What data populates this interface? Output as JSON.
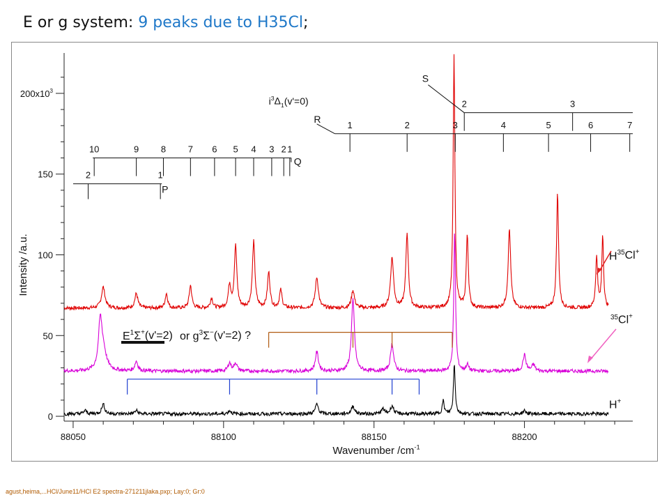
{
  "title": {
    "prefix": "E or g system: ",
    "highlight": "9 peaks due to H35Cl",
    "suffix": ";"
  },
  "footer": "agust,heima,...HCl/June11/HCl  E2 spectra-271211jlaka.pxp; Lay:0; Gr:0",
  "colors": {
    "h35cl_ion": "#e00000",
    "cl35_ion": "#d800d8",
    "h_ion": "#000000",
    "comb_brown": "#b05a10",
    "comb_blue": "#1f3fd0",
    "arrow_red": "#e02020",
    "arrow_pink": "#f060c0",
    "title_highlight": "#1f78c8"
  },
  "chart_data": {
    "type": "line",
    "title": "",
    "xlabel": "Wavenumber /cm",
    "xlabel_sup": "-1",
    "ylabel": "Intensity  /a.u.",
    "xlim": [
      88047,
      88236
    ],
    "ylim": [
      -3,
      225
    ],
    "x_ticks": [
      88050,
      88100,
      88150,
      88200
    ],
    "y_ticks": [
      {
        "value": 0,
        "label": "0"
      },
      {
        "value": 50,
        "label": "50"
      },
      {
        "value": 100,
        "label": "100"
      },
      {
        "value": 150,
        "label": "150"
      },
      {
        "value": 200,
        "label": "200x10",
        "sup": "3"
      }
    ],
    "series": [
      {
        "name": "H35Cl+",
        "label_main": "H",
        "label_sup": "35",
        "label_rest": "Cl",
        "label_sup2": "+",
        "color": "#e00000",
        "baseline": 67,
        "x_range": [
          88047,
          88228
        ],
        "peaks": [
          [
            88060,
            13,
            0.7
          ],
          [
            88071,
            9,
            0.6
          ],
          [
            88081,
            9,
            0.5
          ],
          [
            88089,
            14,
            0.5
          ],
          [
            88096,
            6,
            0.5
          ],
          [
            88102,
            14,
            0.5
          ],
          [
            88104,
            38,
            0.5
          ],
          [
            88110,
            41,
            0.5
          ],
          [
            88115,
            22,
            0.5
          ],
          [
            88119,
            11,
            0.5
          ],
          [
            88131,
            19,
            0.6
          ],
          [
            88143,
            11,
            0.6
          ],
          [
            88156,
            31,
            0.6
          ],
          [
            88161,
            46,
            0.5
          ],
          [
            88176.6,
            156,
            0.35
          ],
          [
            88181,
            45,
            0.4
          ],
          [
            88195,
            49,
            0.5
          ],
          [
            88211,
            71,
            0.4
          ],
          [
            88224,
            31,
            0.4
          ],
          [
            88226,
            45,
            0.35
          ]
        ]
      },
      {
        "name": "35Cl+",
        "label_main": "",
        "label_sup": "35",
        "label_rest": "Cl",
        "label_sup2": "+",
        "color": "#d800d8",
        "baseline": 28,
        "x_range": [
          88047,
          88228
        ],
        "peaks": [
          [
            88059,
            28,
            0.7
          ],
          [
            88060,
            12,
            1.2
          ],
          [
            88071,
            6,
            0.6
          ],
          [
            88102,
            5,
            0.6
          ],
          [
            88104,
            5,
            0.6
          ],
          [
            88131,
            12,
            0.6
          ],
          [
            88143,
            44,
            0.6
          ],
          [
            88156,
            17,
            0.6
          ],
          [
            88176.8,
            86,
            0.35
          ],
          [
            88181,
            4,
            0.5
          ],
          [
            88200,
            10,
            0.6
          ],
          [
            88203,
            4,
            0.6
          ]
        ]
      },
      {
        "name": "H+",
        "label_main": "H",
        "label_sup": "",
        "label_rest": "",
        "label_sup2": "+",
        "color": "#000000",
        "baseline": 1.5,
        "x_range": [
          88047,
          88228
        ],
        "peaks": [
          [
            88054,
            2,
            0.6
          ],
          [
            88060,
            6,
            0.6
          ],
          [
            88071,
            2,
            0.6
          ],
          [
            88102,
            2,
            0.6
          ],
          [
            88131,
            6,
            0.6
          ],
          [
            88143,
            5,
            0.6
          ],
          [
            88153,
            3,
            0.6
          ],
          [
            88156,
            5,
            0.6
          ],
          [
            88173,
            8,
            0.4
          ],
          [
            88176.7,
            31,
            0.35
          ],
          [
            88200,
            2,
            0.6
          ]
        ]
      }
    ],
    "branch_annotations": [
      {
        "branch": "P",
        "label_anchor": "below-right",
        "lines": [
          {
            "label": "1",
            "x": 88079
          },
          {
            "label": "2",
            "x": 88055
          }
        ],
        "bar_y": 144,
        "bar_x_end": 88050
      },
      {
        "branch": "Q",
        "label_anchor": "right",
        "lines": [
          {
            "label": "1",
            "x": 88122
          },
          {
            "label": "2",
            "x": 88120
          },
          {
            "label": "3",
            "x": 88116
          },
          {
            "label": "4",
            "x": 88110
          },
          {
            "label": "5",
            "x": 88104
          },
          {
            "label": "6",
            "x": 88097
          },
          {
            "label": "7",
            "x": 88089
          },
          {
            "label": "8",
            "x": 88080
          },
          {
            "label": "9",
            "x": 88071
          },
          {
            "label": "10",
            "x": 88057
          }
        ],
        "bar_y": 160
      },
      {
        "branch": "R",
        "label_anchor": "left-diagonal",
        "lines": [
          {
            "label": "1",
            "x": 88142
          },
          {
            "label": "2",
            "x": 88161
          },
          {
            "label": "3",
            "x": 88177
          },
          {
            "label": "4",
            "x": 88193
          },
          {
            "label": "5",
            "x": 88208
          },
          {
            "label": "6",
            "x": 88222
          },
          {
            "label": "7",
            "x": 88235
          }
        ],
        "bar_y": 175
      },
      {
        "branch": "S",
        "label_anchor": "left-diagonal",
        "lines": [
          {
            "label": "2",
            "x": 88180
          },
          {
            "label": "3",
            "x": 88216
          }
        ],
        "bar_y": 188
      }
    ],
    "state_label": {
      "main": "i",
      "sup": "3",
      "greek": "Δ",
      "sub": "1",
      "rest": "(v'=0)"
    },
    "e_state_label": {
      "E": "E",
      "E_sup": "1",
      "Sigma": "Σ",
      "Sigma_sup": "+",
      "E_rest": "(v'=2)",
      "or": "or g",
      "g_sup": "3",
      "g_Sigma": "Σ",
      "g_Sigma_sup": "−",
      "g_rest": "(v'=2) ?"
    },
    "brown_comb": {
      "bar_y": 52,
      "lines": [
        88115,
        88143,
        88156,
        88176
      ]
    },
    "blue_comb": {
      "bar_y": 23,
      "lines": [
        88068,
        88102,
        88131,
        88156,
        88165
      ]
    },
    "grid": false,
    "legend": "right"
  }
}
